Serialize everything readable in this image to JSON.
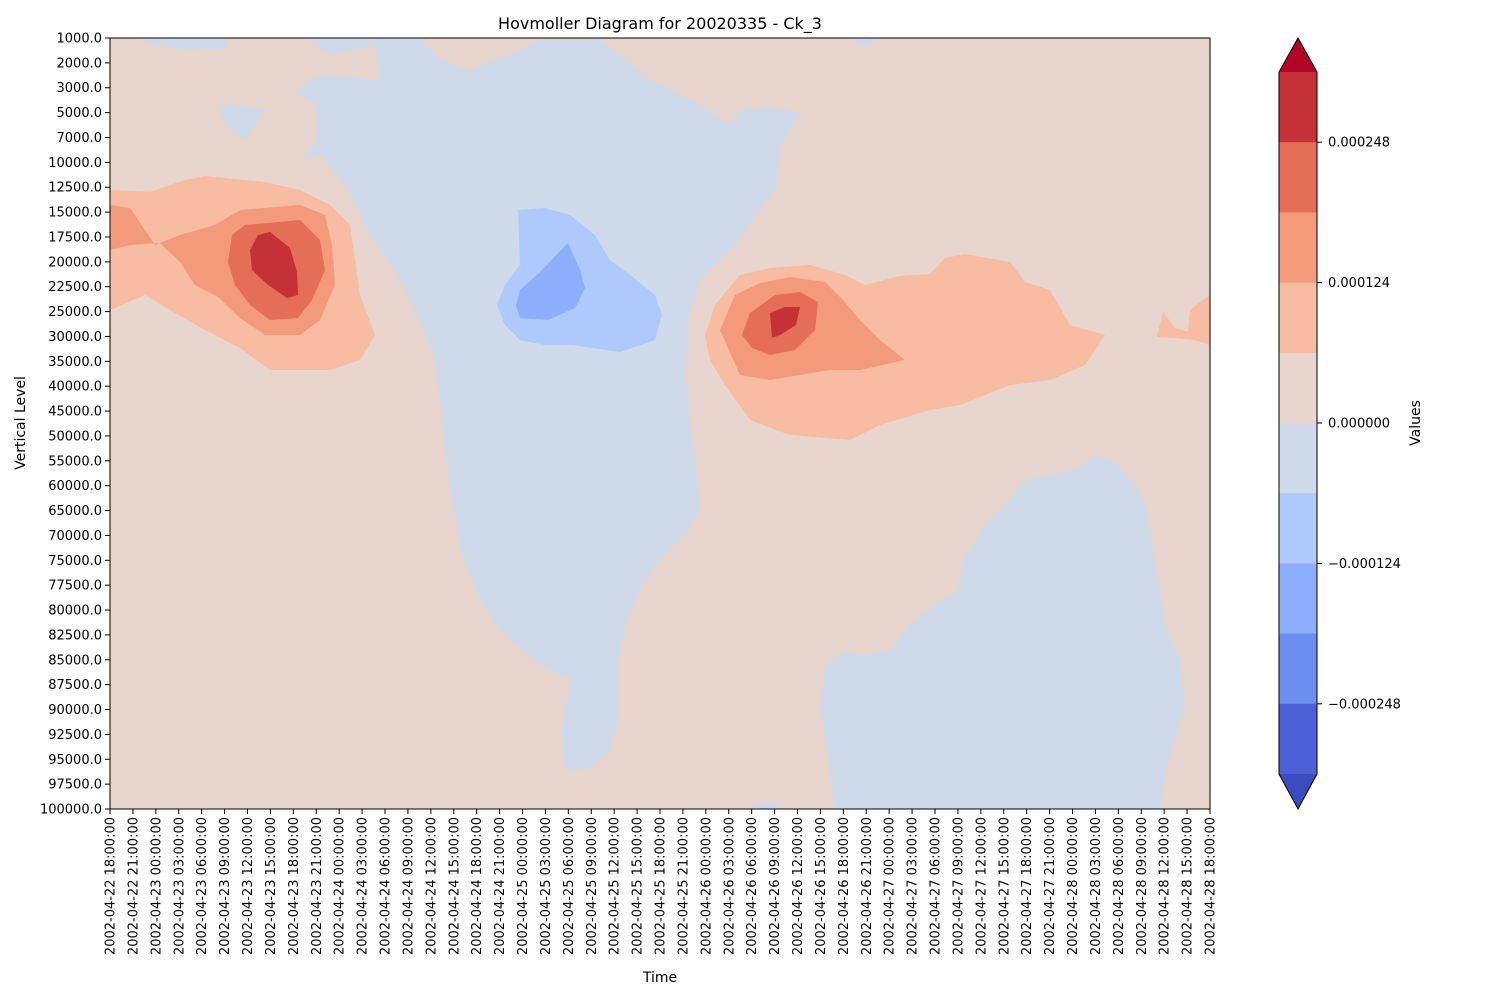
{
  "chart_data": {
    "type": "heatmap",
    "subtype": "filled-contour (Hovmoller)",
    "title": "Hovmoller Diagram for 20020335 - Ck_3",
    "xlabel": "Time",
    "ylabel": "Vertical Level",
    "colorbar_label": "Values",
    "y_axis_inverted": true,
    "y_categories": [
      "1000.0",
      "2000.0",
      "3000.0",
      "5000.0",
      "7000.0",
      "10000.0",
      "12500.0",
      "15000.0",
      "17500.0",
      "20000.0",
      "22500.0",
      "25000.0",
      "30000.0",
      "35000.0",
      "40000.0",
      "45000.0",
      "50000.0",
      "55000.0",
      "60000.0",
      "65000.0",
      "70000.0",
      "75000.0",
      "77500.0",
      "80000.0",
      "82500.0",
      "85000.0",
      "87500.0",
      "90000.0",
      "92500.0",
      "95000.0",
      "97500.0",
      "100000.0"
    ],
    "x_categories": [
      "2002-04-22 18:00:00",
      "2002-04-22 21:00:00",
      "2002-04-23 00:00:00",
      "2002-04-23 03:00:00",
      "2002-04-23 06:00:00",
      "2002-04-23 09:00:00",
      "2002-04-23 12:00:00",
      "2002-04-23 15:00:00",
      "2002-04-23 18:00:00",
      "2002-04-23 21:00:00",
      "2002-04-24 00:00:00",
      "2002-04-24 03:00:00",
      "2002-04-24 06:00:00",
      "2002-04-24 09:00:00",
      "2002-04-24 12:00:00",
      "2002-04-24 15:00:00",
      "2002-04-24 18:00:00",
      "2002-04-24 21:00:00",
      "2002-04-25 00:00:00",
      "2002-04-25 03:00:00",
      "2002-04-25 06:00:00",
      "2002-04-25 09:00:00",
      "2002-04-25 12:00:00",
      "2002-04-25 15:00:00",
      "2002-04-25 18:00:00",
      "2002-04-25 21:00:00",
      "2002-04-26 00:00:00",
      "2002-04-26 03:00:00",
      "2002-04-26 06:00:00",
      "2002-04-26 09:00:00",
      "2002-04-26 12:00:00",
      "2002-04-26 15:00:00",
      "2002-04-26 18:00:00",
      "2002-04-26 21:00:00",
      "2002-04-27 00:00:00",
      "2002-04-27 03:00:00",
      "2002-04-27 06:00:00",
      "2002-04-27 09:00:00",
      "2002-04-27 12:00:00",
      "2002-04-27 15:00:00",
      "2002-04-27 18:00:00",
      "2002-04-27 21:00:00",
      "2002-04-28 00:00:00",
      "2002-04-28 03:00:00",
      "2002-04-28 06:00:00",
      "2002-04-28 09:00:00",
      "2002-04-28 12:00:00",
      "2002-04-28 15:00:00",
      "2002-04-28 18:00:00"
    ],
    "colorbar": {
      "tick_labels": [
        "0.000248",
        "0.000124",
        "0.000000",
        "−0.000124",
        "−0.000248"
      ],
      "tick_values": [
        0.000248,
        0.000124,
        0.0,
        -0.000124,
        -0.000248
      ],
      "range": [
        -0.00031,
        0.00031
      ],
      "extend": "both",
      "levels_colors_top_to_bottom": [
        "#c43136",
        "#e46e56",
        "#f39a7b",
        "#f7bca1",
        "#e8d5cd",
        "#cfdaea",
        "#aec9fc",
        "#8caefd",
        "#6b8ef0",
        "#4c61d5"
      ],
      "over_color": "#b40426",
      "under_color": "#3b4cc0"
    },
    "features": [
      {
        "kind": "positive",
        "time": "2002-04-23 15:00:00",
        "level": "20000.0",
        "peak": 0.00031,
        "level_range": [
          "12500.0",
          "35000.0"
        ]
      },
      {
        "kind": "positive",
        "time": "2002-04-26 09:00:00",
        "level": "25000.0",
        "peak": 0.00031,
        "level_range": [
          "20000.0",
          "50000.0"
        ]
      },
      {
        "kind": "negative",
        "time": "2002-04-25 03:00:00",
        "level": "22500.0",
        "min": -0.00015,
        "level_range": [
          "15000.0",
          "35000.0"
        ]
      }
    ]
  }
}
